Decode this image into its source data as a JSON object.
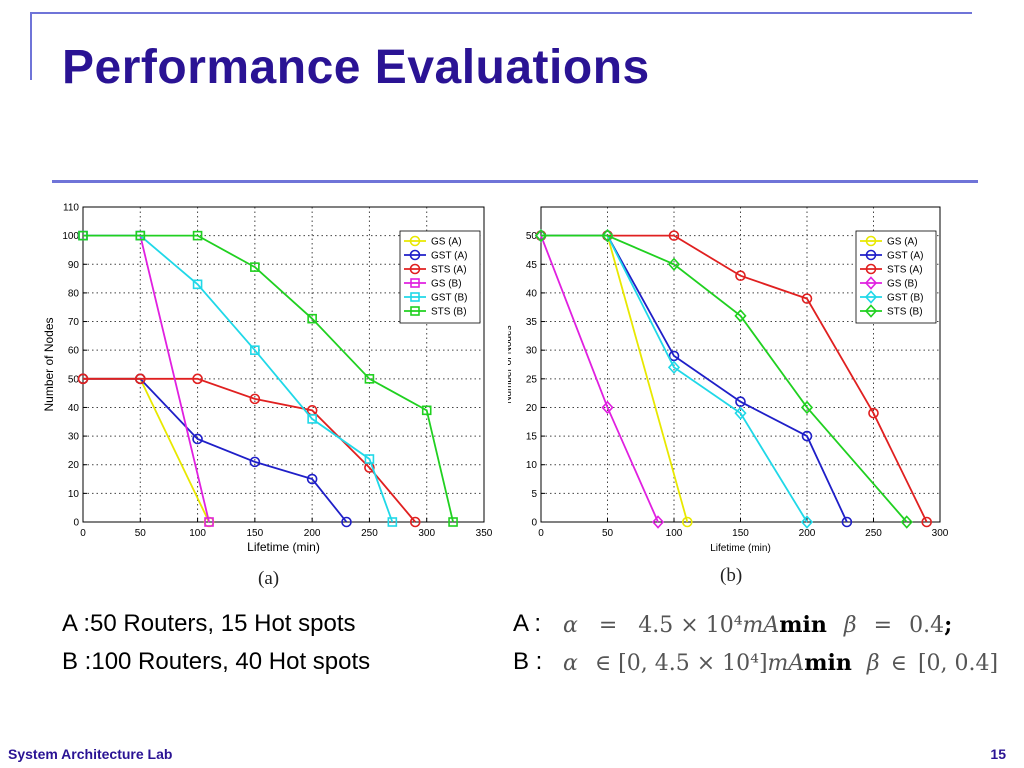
{
  "slide": {
    "title": "Performance Evaluations",
    "footer_left": "System Architecture Lab",
    "page_number": "15",
    "accent_color": "#2a1394",
    "rule_color": "#6f74d8"
  },
  "captions": {
    "a": "(a)",
    "b": "(b)"
  },
  "notes": {
    "a_label": "A :50 Routers, 15 Hot spots",
    "b_label": "B :100 Routers, 40 Hot spots",
    "a_param_prefix": "A :",
    "b_param_prefix": "B :",
    "a_alpha": "α",
    "a_alpha_eq": "=",
    "a_alpha_val": "4.5 × 10⁴",
    "a_alpha_unit": "mA",
    "a_min": "min",
    "a_beta": "β",
    "a_beta_eq": "=",
    "a_beta_val": "0.4",
    "a_semicolon": ";",
    "b_alpha": "α",
    "b_alpha_in": "∈",
    "b_alpha_range": "[0, 4.5 × 10⁴]",
    "b_alpha_unit": "mA",
    "b_min": "min",
    "b_beta": "β",
    "b_beta_in": "∈",
    "b_beta_range": "[0, 0.4]"
  },
  "chart_data": [
    {
      "type": "line",
      "xlabel": "Lifetime (min)",
      "ylabel": "Number of Nodes",
      "xlim": [
        0,
        350
      ],
      "ylim": [
        0,
        110
      ],
      "xticks": [
        0,
        50,
        100,
        150,
        200,
        250,
        300,
        350
      ],
      "yticks": [
        0,
        10,
        20,
        30,
        40,
        50,
        60,
        70,
        80,
        90,
        100,
        110
      ],
      "grid": true,
      "legend_position": "top-right",
      "series": [
        {
          "name": "GS (A)",
          "color": "#e8e800",
          "marker": "circle",
          "x": [
            0,
            50,
            110
          ],
          "y": [
            50,
            50,
            0
          ]
        },
        {
          "name": "GST (A)",
          "color": "#1f1fc8",
          "marker": "circle",
          "x": [
            0,
            50,
            100,
            150,
            200,
            230
          ],
          "y": [
            50,
            50,
            29,
            21,
            15,
            0
          ]
        },
        {
          "name": "STS (A)",
          "color": "#e02020",
          "marker": "circle",
          "x": [
            0,
            50,
            100,
            150,
            200,
            250,
            290
          ],
          "y": [
            50,
            50,
            50,
            43,
            39,
            19,
            0
          ]
        },
        {
          "name": "GS (B)",
          "color": "#e020e0",
          "marker": "square",
          "x": [
            0,
            50,
            110
          ],
          "y": [
            100,
            100,
            0
          ]
        },
        {
          "name": "GST (B)",
          "color": "#20d8e8",
          "marker": "square",
          "x": [
            0,
            50,
            100,
            150,
            200,
            250,
            270
          ],
          "y": [
            100,
            100,
            83,
            60,
            36,
            22,
            0
          ]
        },
        {
          "name": "STS (B)",
          "color": "#20d020",
          "marker": "square",
          "x": [
            0,
            50,
            100,
            150,
            200,
            250,
            300,
            323
          ],
          "y": [
            100,
            100,
            100,
            89,
            71,
            50,
            39,
            0
          ]
        }
      ]
    },
    {
      "type": "line",
      "xlabel": "Lifetime (min)",
      "ylabel": "Number of Nodes",
      "xlim": [
        0,
        300
      ],
      "ylim": [
        0,
        55
      ],
      "xticks": [
        0,
        50,
        100,
        150,
        200,
        250,
        300
      ],
      "yticks": [
        0,
        5,
        10,
        15,
        20,
        25,
        30,
        35,
        40,
        45,
        50
      ],
      "grid": true,
      "legend_position": "top-right",
      "series": [
        {
          "name": "GS (A)",
          "color": "#e8e800",
          "marker": "circle",
          "x": [
            0,
            50,
            110
          ],
          "y": [
            50,
            50,
            0
          ]
        },
        {
          "name": "GST (A)",
          "color": "#1f1fc8",
          "marker": "circle",
          "x": [
            0,
            50,
            100,
            150,
            200,
            230
          ],
          "y": [
            50,
            50,
            29,
            21,
            15,
            0
          ]
        },
        {
          "name": "STS (A)",
          "color": "#e02020",
          "marker": "circle",
          "x": [
            0,
            50,
            100,
            150,
            200,
            250,
            290
          ],
          "y": [
            50,
            50,
            50,
            43,
            39,
            19,
            0
          ]
        },
        {
          "name": "GS (B)",
          "color": "#e020e0",
          "marker": "diamond",
          "x": [
            0,
            50,
            88
          ],
          "y": [
            50,
            20,
            0
          ]
        },
        {
          "name": "GST (B)",
          "color": "#20d8e8",
          "marker": "diamond",
          "x": [
            0,
            50,
            100,
            150,
            200
          ],
          "y": [
            50,
            50,
            27,
            19,
            0
          ]
        },
        {
          "name": "STS (B)",
          "color": "#20d020",
          "marker": "diamond",
          "x": [
            0,
            50,
            100,
            150,
            200,
            275
          ],
          "y": [
            50,
            50,
            45,
            36,
            20,
            0
          ]
        }
      ]
    }
  ]
}
